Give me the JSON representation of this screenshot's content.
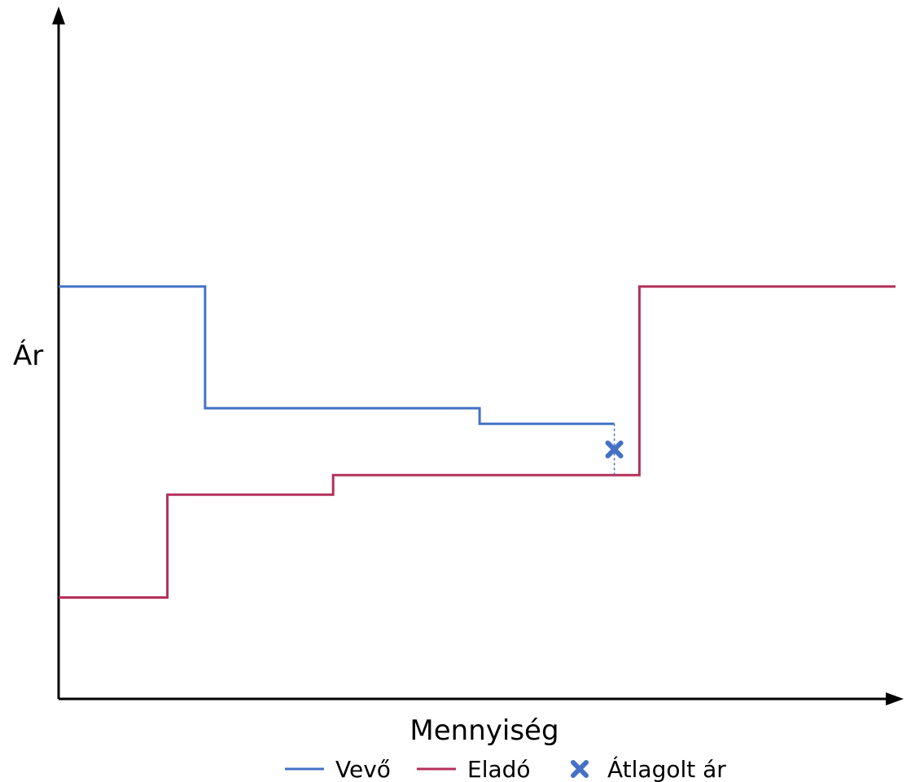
{
  "chart_data": {
    "type": "line",
    "step": true,
    "xlabel": "Mennyiség",
    "ylabel": "Ár",
    "xlim": [
      0,
      100
    ],
    "ylim": [
      0,
      100
    ],
    "axis_ticks": false,
    "grid": false,
    "legend_position": "bottom",
    "series": [
      {
        "name": "Vevő",
        "color": "#4472C4",
        "points": [
          [
            0,
            61
          ],
          [
            17.5,
            61
          ],
          [
            17.5,
            43
          ],
          [
            50.3,
            43
          ],
          [
            50.3,
            40.7
          ],
          [
            66.4,
            40.7
          ]
        ]
      },
      {
        "name": "Eladó",
        "color": "#B5305A",
        "points": [
          [
            0,
            15
          ],
          [
            13,
            15
          ],
          [
            13,
            30.2
          ],
          [
            32.8,
            30.2
          ],
          [
            32.8,
            33.1
          ],
          [
            69.4,
            33.1
          ],
          [
            69.4,
            61
          ],
          [
            100,
            61
          ]
        ]
      }
    ],
    "markers": [
      {
        "name": "Átlagolt ár",
        "color": "#4472C4",
        "shape": "x",
        "x": 66.4,
        "y": 36.9
      }
    ]
  }
}
